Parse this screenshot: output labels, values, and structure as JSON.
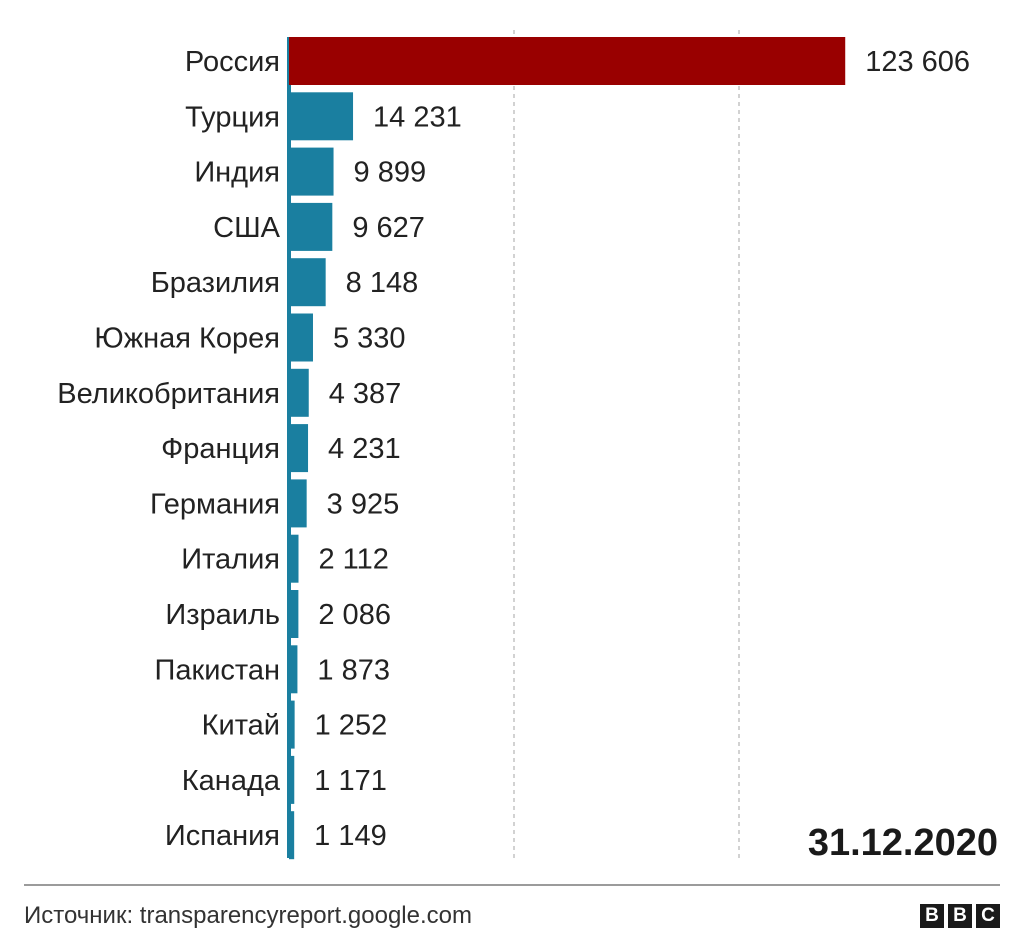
{
  "chart_data": {
    "type": "bar",
    "orientation": "horizontal",
    "categories": [
      "Россия",
      "Турция",
      "Индия",
      "США",
      "Бразилия",
      "Южная Корея",
      "Великобритания",
      "Франция",
      "Германия",
      "Италия",
      "Израиль",
      "Пакистан",
      "Китай",
      "Канада",
      "Испания"
    ],
    "values": [
      123606,
      14231,
      9899,
      9627,
      8148,
      5330,
      4387,
      4231,
      3925,
      2112,
      2086,
      1873,
      1252,
      1171,
      1149
    ],
    "value_labels": [
      "123 606",
      "14 231",
      "9 899",
      "9 627",
      "8 148",
      "5 330",
      "4 387",
      "4 231",
      "3 925",
      "2 112",
      "2 086",
      "1 873",
      "1 252",
      "1 171",
      "1 149"
    ],
    "xlim": [
      0,
      150000
    ],
    "gridlines": [
      50000,
      100000
    ],
    "grid": true,
    "annotation": "31.12.2020",
    "colors": {
      "highlight": "#990000",
      "bar": "#1a7fa0",
      "grid": "#c4c4c4",
      "axis": "#1a7fa0"
    }
  },
  "footer": {
    "source": "Источник: transparencyreport.google.com",
    "logo_letters": [
      "B",
      "B",
      "C"
    ]
  }
}
